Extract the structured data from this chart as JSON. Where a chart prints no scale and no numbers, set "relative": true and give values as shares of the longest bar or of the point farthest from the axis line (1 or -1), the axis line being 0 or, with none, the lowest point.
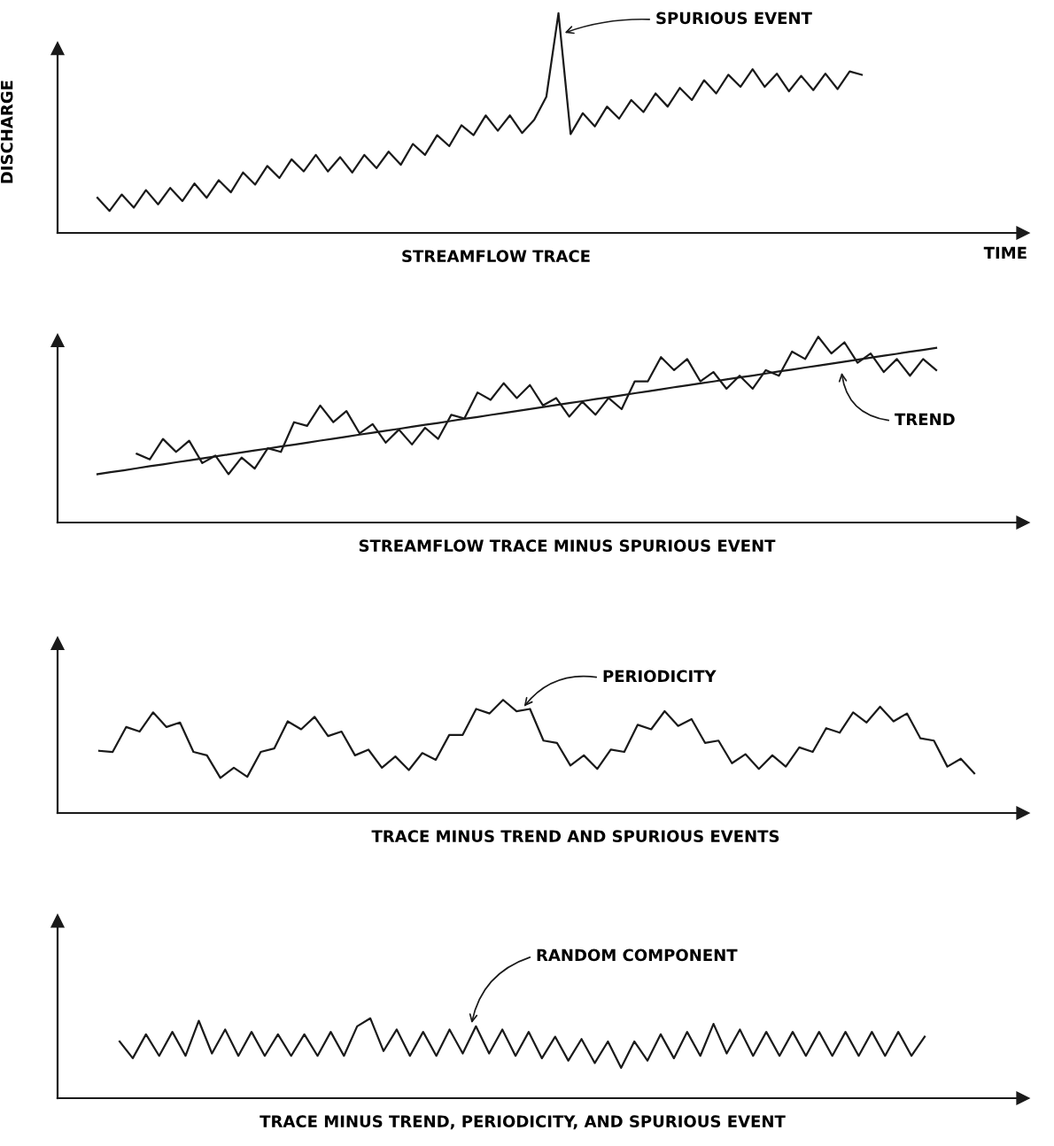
{
  "chart_data": [
    {
      "type": "line",
      "relative": true,
      "xlabel": "STREAMFLOW TRACE",
      "ylabel": "DISCHARGE",
      "annotations": [
        "SPURIOUS EVENT",
        "TIME"
      ],
      "categories": [
        null,
        null,
        null,
        null,
        null,
        null,
        null,
        null,
        null,
        null,
        null,
        null,
        null,
        null,
        null,
        null,
        null,
        null,
        null,
        null,
        null,
        null,
        null,
        null,
        null,
        null,
        null,
        null,
        null,
        null,
        null,
        null,
        null,
        null,
        null,
        null,
        null,
        null,
        null,
        null,
        null,
        null,
        null,
        null,
        null,
        null,
        null,
        null,
        null,
        null,
        null,
        null,
        null,
        null,
        null,
        null,
        null,
        null,
        null,
        null,
        null,
        null,
        null,
        null
      ],
      "series": [
        {
          "color": "#1a1a1a",
          "values": [
            0.16,
            0.1,
            0.175,
            0.115,
            0.195,
            0.13,
            0.205,
            0.145,
            0.225,
            0.16,
            0.24,
            0.185,
            0.275,
            0.22,
            0.305,
            0.25,
            0.335,
            0.28,
            0.355,
            0.28,
            0.345,
            0.275,
            0.355,
            0.295,
            0.37,
            0.31,
            0.405,
            0.355,
            0.445,
            0.395,
            0.49,
            0.445,
            0.535,
            0.465,
            0.535,
            0.455,
            0.515,
            0.62,
            1.0,
            0.45,
            0.545,
            0.485,
            0.575,
            0.52,
            0.605,
            0.55,
            0.635,
            0.575,
            0.66,
            0.605,
            0.695,
            0.635,
            0.72,
            0.665,
            0.745,
            0.665,
            0.725,
            0.645,
            0.715,
            0.65,
            0.725,
            0.655,
            0.735,
            0.72
          ]
        }
      ]
    },
    {
      "type": "line",
      "relative": true,
      "xlabel": "STREAMFLOW TRACE MINUS SPURIOUS EVENT",
      "annotations": [
        "TREND"
      ],
      "categories": [
        null,
        null,
        null,
        null,
        null,
        null,
        null,
        null,
        null,
        null,
        null,
        null,
        null,
        null,
        null,
        null,
        null,
        null,
        null,
        null,
        null,
        null,
        null,
        null,
        null,
        null,
        null,
        null,
        null,
        null,
        null,
        null,
        null,
        null,
        null,
        null,
        null,
        null,
        null,
        null,
        null,
        null,
        null,
        null,
        null,
        null,
        null,
        null,
        null,
        null,
        null,
        null,
        null,
        null,
        null,
        null,
        null,
        null,
        null,
        null,
        null,
        null,
        null,
        null,
        null
      ],
      "series": [
        {
          "color": "#1a1a1a",
          "values": [
            null,
            null,
            null,
            0.37,
            0.34,
            0.45,
            0.38,
            0.44,
            0.32,
            0.36,
            0.26,
            0.35,
            0.29,
            0.4,
            0.38,
            0.54,
            0.52,
            0.63,
            0.54,
            0.6,
            0.48,
            0.53,
            0.43,
            0.5,
            0.42,
            0.51,
            0.45,
            0.58,
            0.56,
            0.7,
            0.66,
            0.75,
            0.67,
            0.74,
            0.63,
            0.67,
            0.57,
            0.65,
            0.58,
            0.67,
            0.61,
            0.76,
            0.76,
            0.89,
            0.82,
            0.88,
            0.76,
            0.81,
            0.72,
            0.79,
            0.72,
            0.82,
            0.79,
            0.92,
            0.88,
            1.0,
            0.91,
            0.97,
            0.86,
            0.91,
            0.81,
            0.88,
            0.79,
            0.88,
            0.82
          ]
        },
        {
          "type": "line",
          "color": "#1a1a1a",
          "values": [
            0.26,
            0.271,
            0.281,
            0.292,
            0.303,
            0.313,
            0.324,
            0.334,
            0.345,
            0.356,
            0.366,
            0.377,
            0.388,
            0.398,
            0.409,
            0.419,
            0.43,
            0.441,
            0.451,
            0.462,
            0.473,
            0.483,
            0.494,
            0.504,
            0.515,
            0.526,
            0.536,
            0.547,
            0.558,
            0.568,
            0.579,
            0.589,
            0.6,
            0.611,
            0.621,
            0.632,
            0.643,
            0.653,
            0.664,
            0.674,
            0.685,
            0.696,
            0.706,
            0.717,
            0.728,
            0.738,
            0.749,
            0.759,
            0.77,
            0.781,
            0.791,
            0.802,
            0.813,
            0.823,
            0.834,
            0.844,
            0.855,
            0.866,
            0.876,
            0.887,
            0.898,
            0.908,
            0.919,
            0.929,
            0.94
          ]
        }
      ]
    },
    {
      "type": "line",
      "relative": true,
      "xlabel": "TRACE MINUS TREND AND SPURIOUS EVENTS",
      "annotations": [
        "PERIODICITY"
      ],
      "categories": [
        null,
        null,
        null,
        null,
        null,
        null,
        null,
        null,
        null,
        null,
        null,
        null,
        null,
        null,
        null,
        null,
        null,
        null,
        null,
        null,
        null,
        null,
        null,
        null,
        null,
        null,
        null,
        null,
        null,
        null,
        null,
        null,
        null,
        null,
        null,
        null,
        null,
        null,
        null,
        null,
        null,
        null,
        null,
        null,
        null,
        null,
        null,
        null,
        null,
        null,
        null,
        null,
        null,
        null,
        null,
        null,
        null,
        null,
        null,
        null,
        null,
        null,
        null,
        null,
        null,
        null
      ],
      "series": [
        {
          "color": "#1a1a1a",
          "values": [
            0.55,
            0.54,
            0.76,
            0.72,
            0.89,
            0.76,
            0.8,
            0.54,
            0.51,
            0.31,
            0.4,
            0.32,
            0.54,
            0.57,
            0.81,
            0.74,
            0.85,
            0.68,
            0.72,
            0.51,
            0.56,
            0.4,
            0.5,
            0.38,
            0.53,
            0.47,
            0.69,
            0.69,
            0.92,
            0.88,
            1.0,
            0.9,
            0.92,
            0.64,
            0.62,
            0.42,
            0.51,
            0.39,
            0.56,
            0.54,
            0.78,
            0.74,
            0.9,
            0.77,
            0.83,
            0.62,
            0.64,
            0.44,
            0.52,
            0.39,
            0.51,
            0.41,
            0.58,
            0.54,
            0.75,
            0.71,
            0.89,
            0.8,
            0.94,
            0.81,
            0.88,
            0.66,
            0.64,
            0.41,
            0.48,
            0.35
          ]
        }
      ]
    },
    {
      "type": "line",
      "relative": true,
      "xlabel": "TRACE MINUS TREND, PERIODICITY, AND SPURIOUS EVENT",
      "annotations": [
        "RANDOM COMPONENT"
      ],
      "categories": [
        null,
        null,
        null,
        null,
        null,
        null,
        null,
        null,
        null,
        null,
        null,
        null,
        null,
        null,
        null,
        null,
        null,
        null,
        null,
        null,
        null,
        null,
        null,
        null,
        null,
        null,
        null,
        null,
        null,
        null,
        null,
        null,
        null,
        null,
        null,
        null,
        null,
        null,
        null,
        null,
        null,
        null,
        null,
        null,
        null,
        null,
        null,
        null,
        null,
        null,
        null,
        null,
        null,
        null,
        null,
        null,
        null,
        null,
        null,
        null,
        null,
        null
      ],
      "series": [
        {
          "color": "#1a1a1a",
          "values": [
            0.71,
            0.5,
            0.8,
            0.53,
            0.83,
            0.53,
            0.97,
            0.56,
            0.86,
            0.53,
            0.83,
            0.53,
            0.8,
            0.53,
            0.8,
            0.53,
            0.83,
            0.53,
            0.9,
            1.0,
            0.59,
            0.86,
            0.53,
            0.83,
            0.53,
            0.86,
            0.56,
            0.9,
            0.56,
            0.86,
            0.53,
            0.83,
            0.5,
            0.77,
            0.47,
            0.74,
            0.44,
            0.71,
            0.38,
            0.71,
            0.47,
            0.8,
            0.5,
            0.83,
            0.53,
            0.93,
            0.56,
            0.86,
            0.53,
            0.83,
            0.53,
            0.83,
            0.53,
            0.83,
            0.53,
            0.83,
            0.53,
            0.83,
            0.53,
            0.83,
            0.53,
            0.77
          ]
        }
      ]
    }
  ]
}
